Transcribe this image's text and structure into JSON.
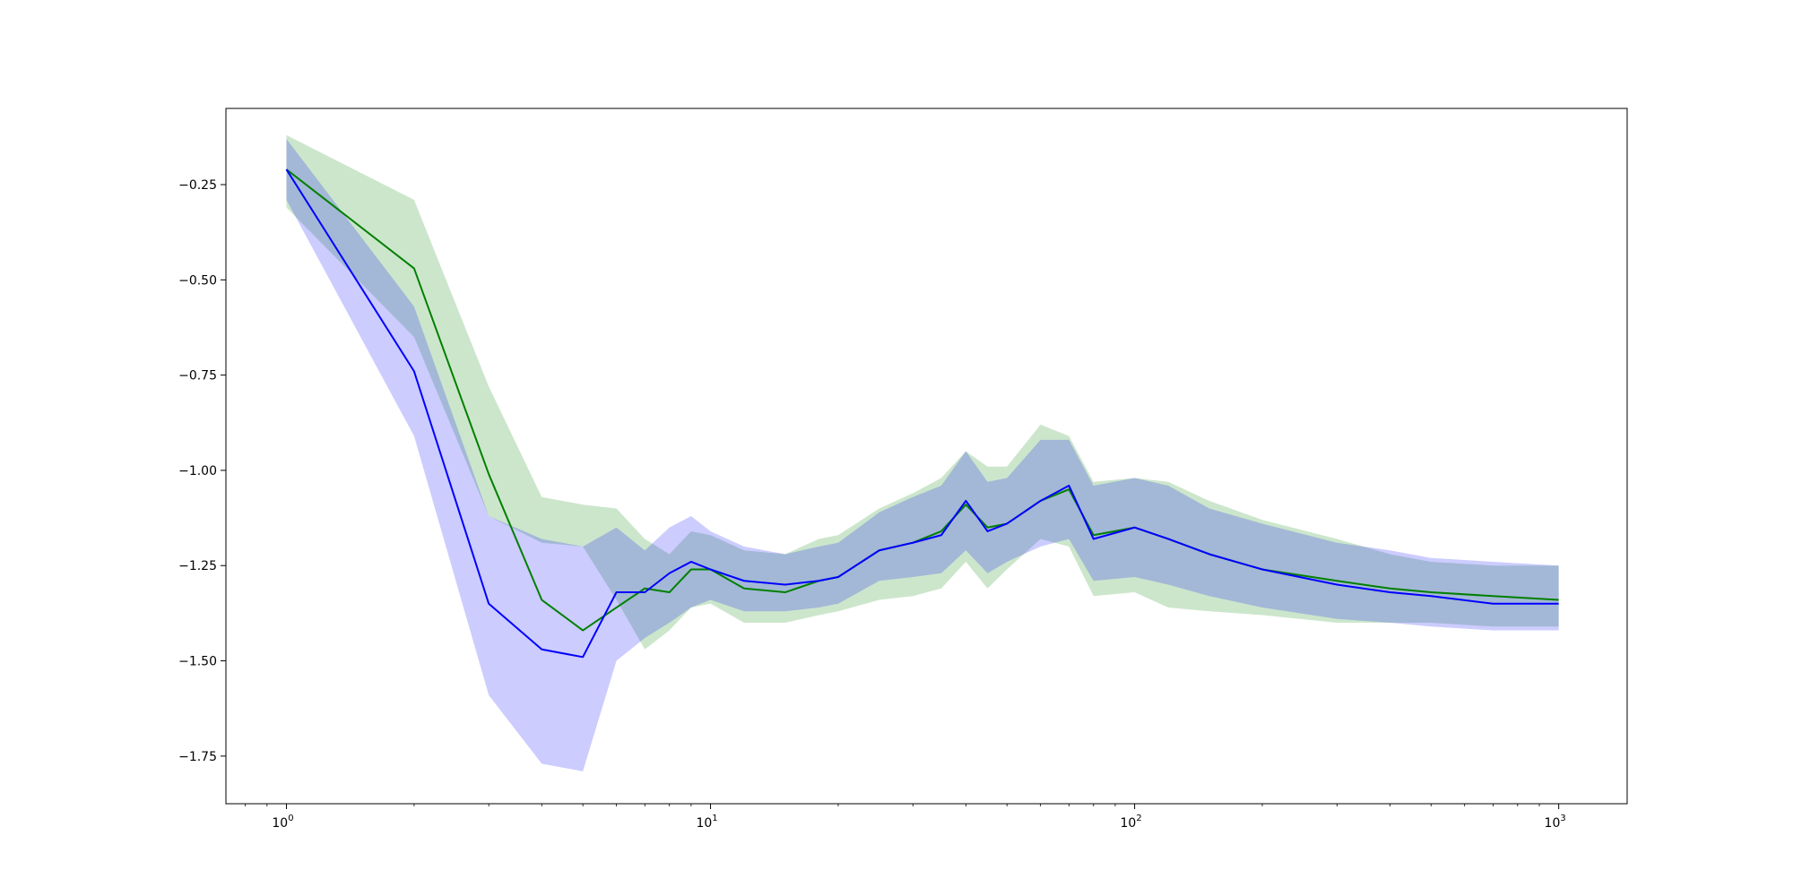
{
  "colors": {
    "series_green": "#008000",
    "series_blue": "#0000ff",
    "band_green": "#008000",
    "band_blue": "#0000ff",
    "axes": "#000000",
    "background": "#ffffff"
  },
  "chart_data": {
    "type": "line",
    "title": "",
    "xlabel": "",
    "ylabel": "",
    "x_scale": "log",
    "xlim": [
      0.72,
      1450
    ],
    "ylim": [
      -1.875,
      -0.05
    ],
    "grid": false,
    "legend": "none",
    "x_ticks": [
      {
        "base": "10",
        "exp": "0",
        "value": 1
      },
      {
        "base": "10",
        "exp": "1",
        "value": 10
      },
      {
        "base": "10",
        "exp": "2",
        "value": 100
      },
      {
        "base": "10",
        "exp": "3",
        "value": 1000
      }
    ],
    "y_ticks": [
      {
        "label": "−0.25",
        "value": -0.25
      },
      {
        "label": "−0.50",
        "value": -0.5
      },
      {
        "label": "−0.75",
        "value": -0.75
      },
      {
        "label": "−1.00",
        "value": -1.0
      },
      {
        "label": "−1.25",
        "value": -1.25
      },
      {
        "label": "−1.50",
        "value": -1.5
      },
      {
        "label": "−1.75",
        "value": -1.75
      }
    ],
    "x": [
      1,
      2,
      3,
      4,
      5,
      6,
      7,
      8,
      9,
      10,
      12,
      15,
      18,
      20,
      25,
      30,
      35,
      40,
      45,
      50,
      60,
      70,
      80,
      100,
      120,
      150,
      200,
      300,
      400,
      500,
      700,
      1000
    ],
    "series": [
      {
        "color": "green",
        "mean": [
          -0.21,
          -0.47,
          -1.01,
          -1.34,
          -1.42,
          -1.36,
          -1.31,
          -1.32,
          -1.26,
          -1.26,
          -1.31,
          -1.32,
          -1.29,
          -1.28,
          -1.21,
          -1.19,
          -1.16,
          -1.09,
          -1.15,
          -1.14,
          -1.08,
          -1.05,
          -1.17,
          -1.15,
          -1.18,
          -1.22,
          -1.26,
          -1.29,
          -1.31,
          -1.32,
          -1.33,
          -1.34
        ],
        "lower": [
          -0.31,
          -0.65,
          -1.12,
          -1.19,
          -1.2,
          -1.34,
          -1.47,
          -1.42,
          -1.36,
          -1.35,
          -1.4,
          -1.4,
          -1.38,
          -1.37,
          -1.34,
          -1.33,
          -1.31,
          -1.24,
          -1.31,
          -1.26,
          -1.18,
          -1.2,
          -1.33,
          -1.32,
          -1.36,
          -1.37,
          -1.38,
          -1.4,
          -1.4,
          -1.4,
          -1.41,
          -1.41
        ],
        "upper": [
          -0.12,
          -0.29,
          -0.78,
          -1.07,
          -1.09,
          -1.1,
          -1.18,
          -1.22,
          -1.16,
          -1.17,
          -1.21,
          -1.22,
          -1.18,
          -1.17,
          -1.1,
          -1.06,
          -1.02,
          -0.95,
          -0.99,
          -0.99,
          -0.88,
          -0.91,
          -1.03,
          -1.02,
          -1.03,
          -1.08,
          -1.13,
          -1.18,
          -1.22,
          -1.24,
          -1.25,
          -1.25
        ]
      },
      {
        "color": "blue",
        "mean": [
          -0.21,
          -0.74,
          -1.35,
          -1.47,
          -1.49,
          -1.32,
          -1.32,
          -1.27,
          -1.24,
          -1.26,
          -1.29,
          -1.3,
          -1.29,
          -1.28,
          -1.21,
          -1.19,
          -1.17,
          -1.08,
          -1.16,
          -1.14,
          -1.08,
          -1.04,
          -1.18,
          -1.15,
          -1.18,
          -1.22,
          -1.26,
          -1.3,
          -1.32,
          -1.33,
          -1.35,
          -1.35
        ],
        "lower": [
          -0.29,
          -0.91,
          -1.59,
          -1.77,
          -1.79,
          -1.5,
          -1.44,
          -1.4,
          -1.36,
          -1.34,
          -1.37,
          -1.37,
          -1.36,
          -1.35,
          -1.29,
          -1.28,
          -1.27,
          -1.21,
          -1.27,
          -1.24,
          -1.2,
          -1.18,
          -1.29,
          -1.28,
          -1.3,
          -1.33,
          -1.36,
          -1.39,
          -1.4,
          -1.41,
          -1.42,
          -1.42
        ],
        "upper": [
          -0.13,
          -0.57,
          -1.12,
          -1.18,
          -1.2,
          -1.15,
          -1.21,
          -1.15,
          -1.12,
          -1.16,
          -1.2,
          -1.22,
          -1.2,
          -1.19,
          -1.11,
          -1.07,
          -1.04,
          -0.95,
          -1.03,
          -1.02,
          -0.92,
          -0.92,
          -1.04,
          -1.02,
          -1.04,
          -1.1,
          -1.14,
          -1.19,
          -1.21,
          -1.23,
          -1.24,
          -1.25
        ]
      }
    ]
  }
}
